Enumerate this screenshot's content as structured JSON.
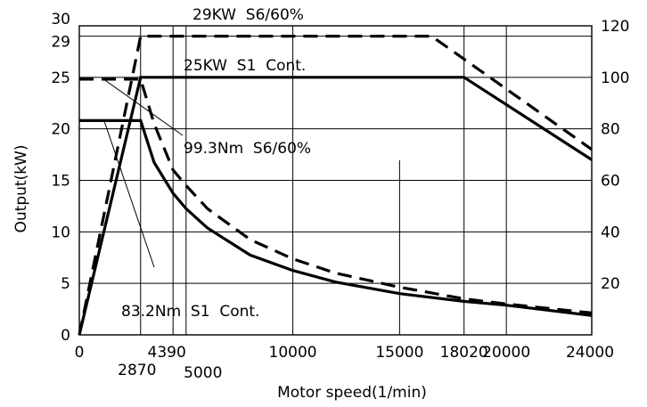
{
  "chart_data": {
    "type": "line",
    "title": "",
    "xlabel": "Motor speed(1/min)",
    "ylabel": "Output(kW)",
    "xlim": [
      0,
      24000
    ],
    "ylim_left": [
      0,
      30
    ],
    "ylim_right": [
      0,
      120
    ],
    "x_ticks": [
      "0",
      "2870",
      "4390",
      "5000",
      "10000",
      "15000",
      "18020",
      "20000",
      "24000"
    ],
    "y_ticks_left": [
      "0",
      "5",
      "10",
      "15",
      "20",
      "25",
      "29",
      "30"
    ],
    "y_ticks_right": [
      "20",
      "40",
      "60",
      "80",
      "100",
      "120"
    ],
    "grid": true,
    "series": [
      {
        "name": "29KW S6/60%",
        "style": "dashed",
        "axis": "left",
        "x": [
          0,
          2870,
          16500,
          24000
        ],
        "y": [
          0,
          29,
          29,
          18
        ]
      },
      {
        "name": "25KW S1 Cont.",
        "style": "solid",
        "axis": "left",
        "x": [
          0,
          2870,
          18020,
          24000
        ],
        "y": [
          0,
          25,
          25,
          17
        ]
      },
      {
        "name": "99.3Nm S6/60%",
        "style": "dashed",
        "axis": "right",
        "x": [
          0,
          1300,
          2870,
          3500,
          4390,
          5000,
          6000,
          8000,
          10000,
          12000,
          15000,
          18020,
          20000,
          24000
        ],
        "y": [
          99.3,
          99.3,
          99.3,
          82,
          64,
          58,
          49,
          37,
          29.5,
          24,
          18.5,
          14,
          12,
          8.5
        ]
      },
      {
        "name": "83.2Nm S1 Cont.",
        "style": "solid",
        "axis": "right",
        "x": [
          0,
          1800,
          2870,
          3500,
          4390,
          5000,
          6000,
          8000,
          10000,
          12000,
          15000,
          18020,
          20000,
          24000
        ],
        "y": [
          83.2,
          83.2,
          83.2,
          67,
          55,
          49,
          41.5,
          31,
          25,
          20.5,
          16,
          13,
          11.5,
          7.5
        ]
      }
    ],
    "annotations": [
      {
        "text": "29KW  S6/60%"
      },
      {
        "text": "25KW  S1  Cont."
      },
      {
        "text": "99.3Nm  S6/60%"
      },
      {
        "text": "83.2Nm  S1  Cont."
      }
    ]
  }
}
